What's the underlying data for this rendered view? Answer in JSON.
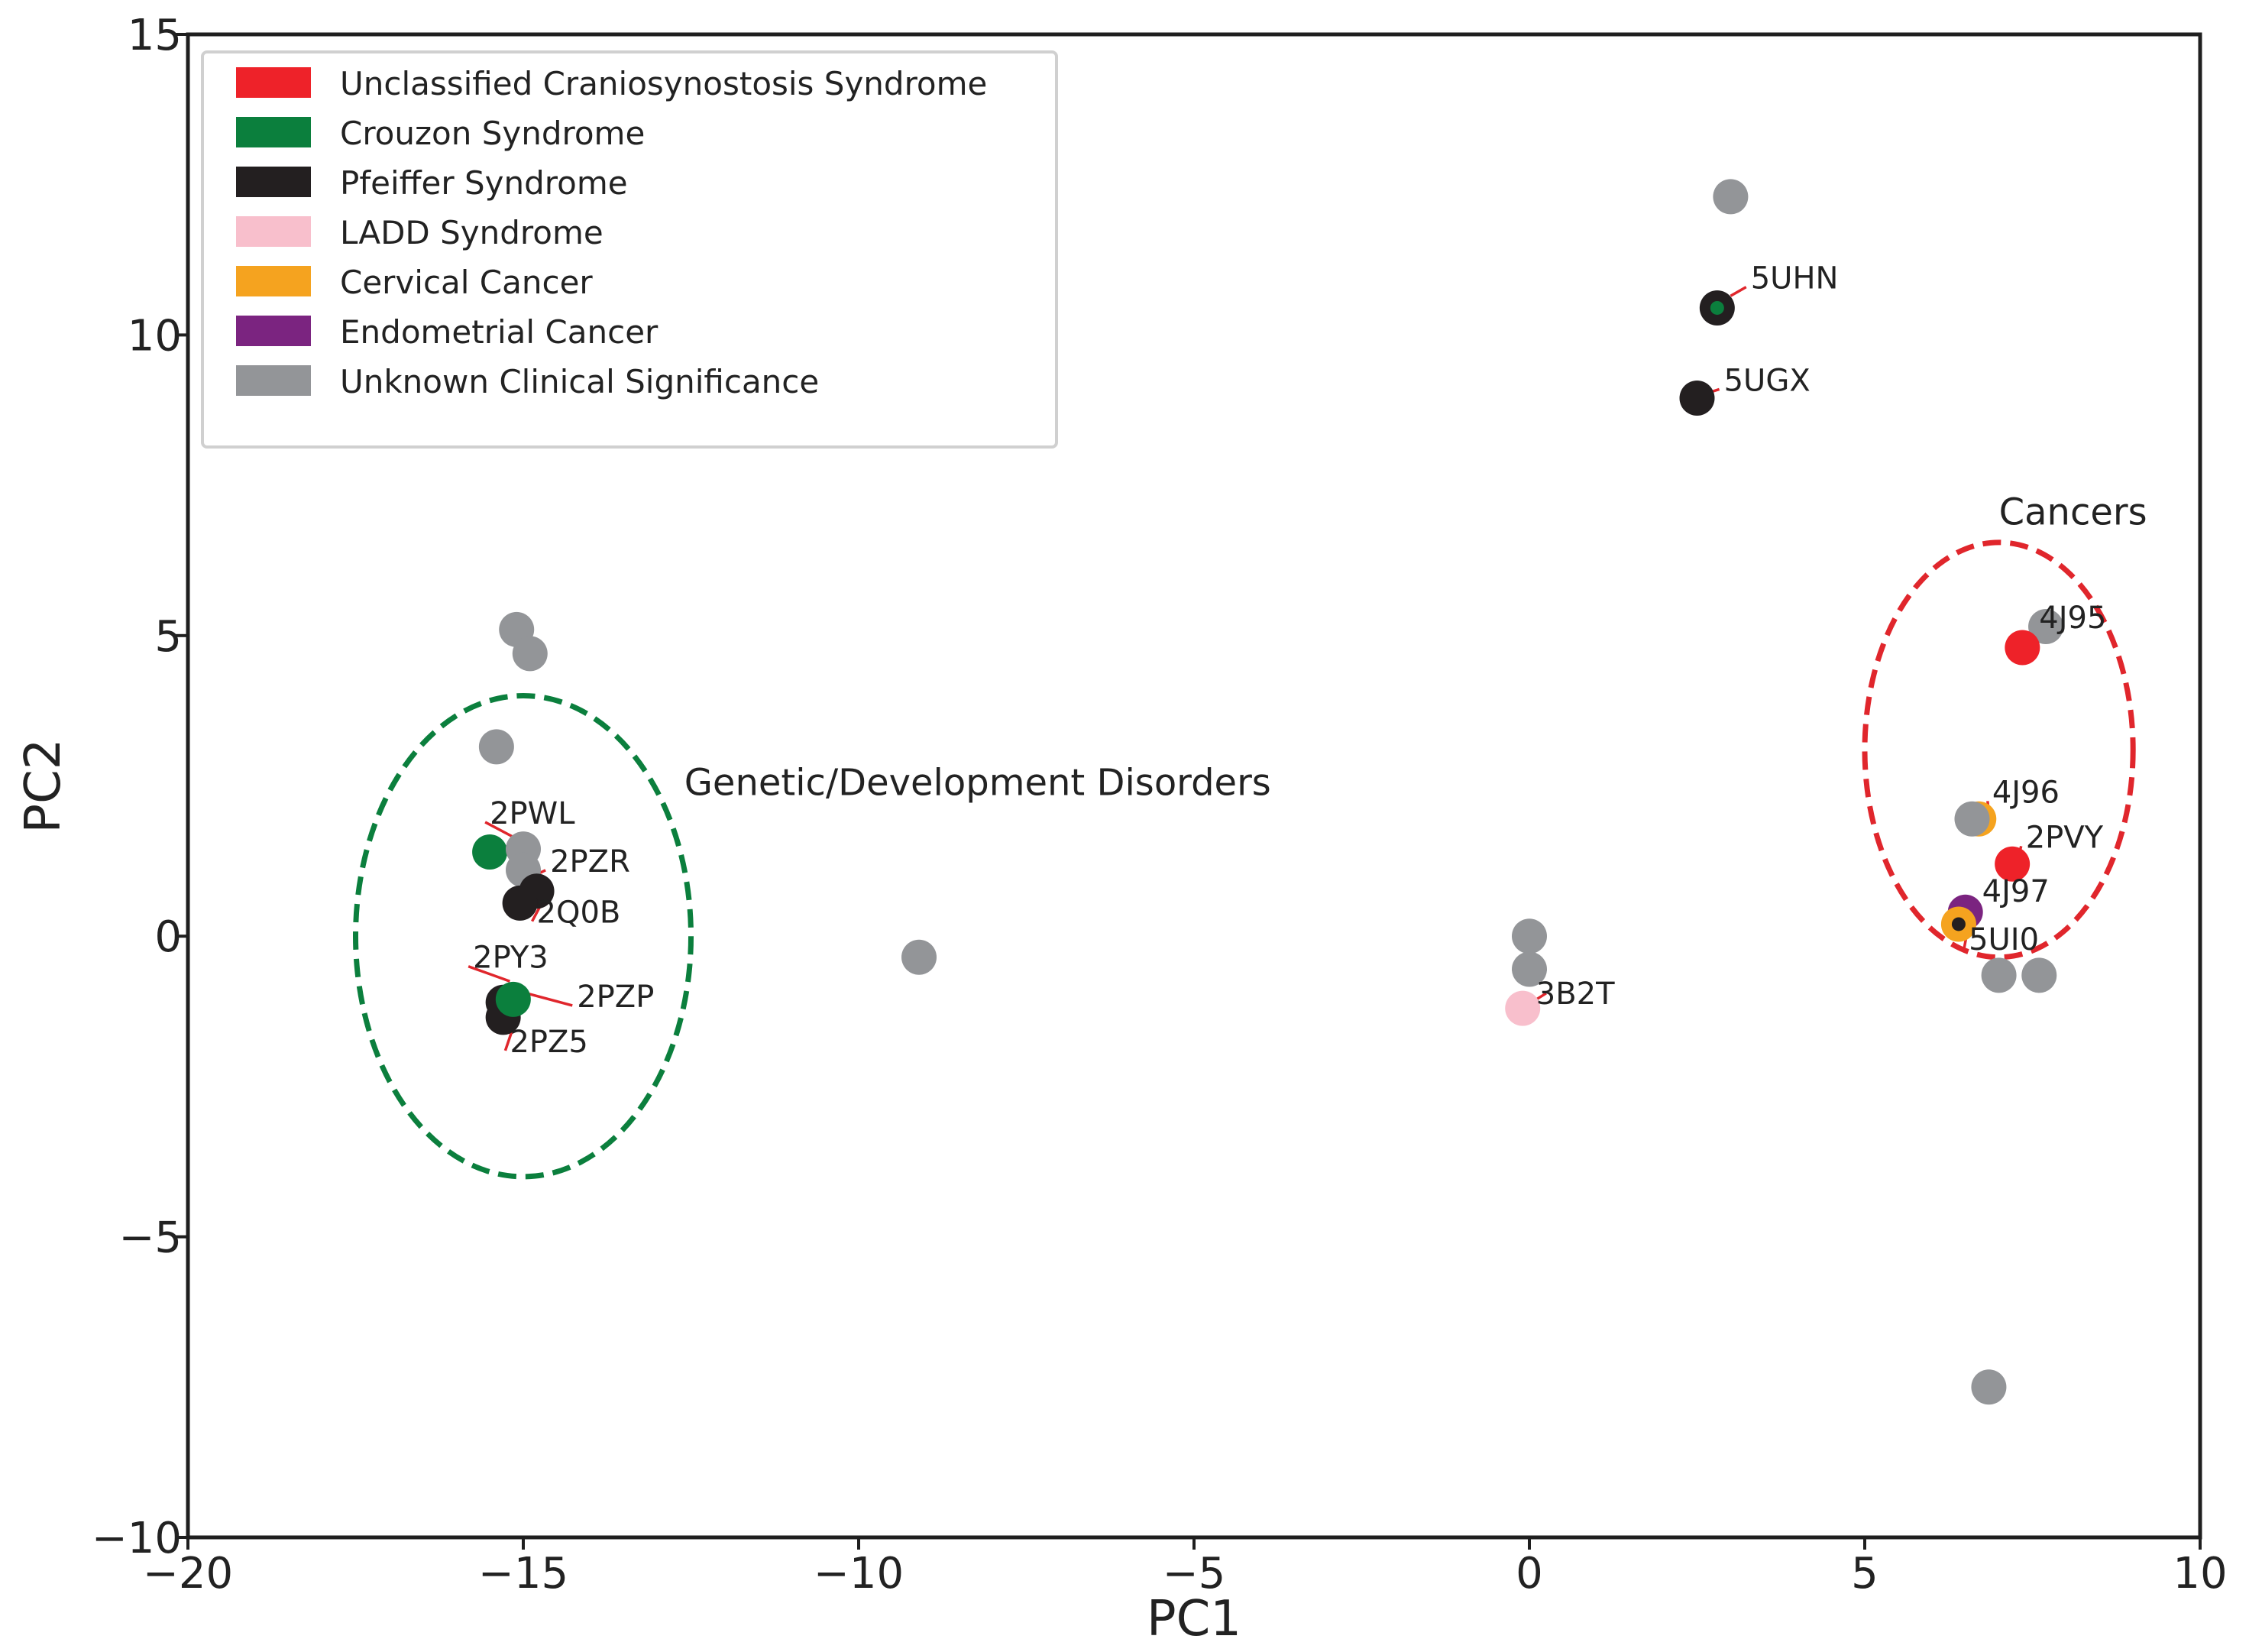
{
  "chart_data": {
    "type": "scatter",
    "title": "",
    "xlabel": "PC1",
    "ylabel": "PC2",
    "xlim": [
      -20,
      10
    ],
    "ylim": [
      -10,
      15
    ],
    "xticks": [
      -20,
      -15,
      -10,
      -5,
      0,
      5,
      10
    ],
    "yticks": [
      -10,
      -5,
      0,
      5,
      10,
      15
    ],
    "xtick_labels": [
      "−20",
      "−15",
      "−10",
      "−5",
      "0",
      "5",
      "10"
    ],
    "ytick_labels": [
      "−10",
      "−5",
      "0",
      "5",
      "10",
      "15"
    ],
    "grid": false,
    "legend_position": "top-left",
    "categories": [
      {
        "key": "ucs",
        "name": "Unclassified Craniosynostosis Syndrome",
        "color": "#ee2229"
      },
      {
        "key": "crouzon",
        "name": "Crouzon Syndrome",
        "color": "#0b7f3d"
      },
      {
        "key": "pfeiffer",
        "name": "Pfeiffer Syndrome",
        "color": "#231f20"
      },
      {
        "key": "ladd",
        "name": "LADD Syndrome",
        "color": "#f8bfcc"
      },
      {
        "key": "cervical",
        "name": "Cervical Cancer",
        "color": "#f5a31f"
      },
      {
        "key": "endometrial",
        "name": "Endometrial Cancer",
        "color": "#7b2480"
      },
      {
        "key": "unknown",
        "name": "Unknown Clinical Significance",
        "color": "#939598"
      }
    ],
    "points": [
      {
        "x": 3.0,
        "y": 12.3,
        "cat": "unknown"
      },
      {
        "x": 2.8,
        "y": 10.45,
        "cat": "pfeiffer"
      },
      {
        "x": 2.8,
        "y": 10.45,
        "cat": "crouzon",
        "inner": true
      },
      {
        "x": 2.5,
        "y": 8.95,
        "cat": "pfeiffer"
      },
      {
        "x": -15.1,
        "y": 5.1,
        "cat": "unknown"
      },
      {
        "x": -14.9,
        "y": 4.7,
        "cat": "unknown"
      },
      {
        "x": -15.4,
        "y": 3.15,
        "cat": "unknown"
      },
      {
        "x": -15.5,
        "y": 1.4,
        "cat": "crouzon"
      },
      {
        "x": -15.0,
        "y": 1.45,
        "cat": "unknown"
      },
      {
        "x": -15.0,
        "y": 1.1,
        "cat": "unknown"
      },
      {
        "x": -14.8,
        "y": 0.75,
        "cat": "pfeiffer"
      },
      {
        "x": -15.05,
        "y": 0.55,
        "cat": "pfeiffer"
      },
      {
        "x": -15.3,
        "y": -1.1,
        "cat": "pfeiffer"
      },
      {
        "x": -15.3,
        "y": -1.35,
        "cat": "pfeiffer"
      },
      {
        "x": -15.15,
        "y": -1.05,
        "cat": "crouzon"
      },
      {
        "x": -9.1,
        "y": -0.35,
        "cat": "unknown"
      },
      {
        "x": 0.0,
        "y": 0.0,
        "cat": "unknown"
      },
      {
        "x": 0.0,
        "y": -0.55,
        "cat": "unknown"
      },
      {
        "x": -0.1,
        "y": -1.2,
        "cat": "ladd"
      },
      {
        "x": 7.7,
        "y": 5.15,
        "cat": "unknown"
      },
      {
        "x": 7.35,
        "y": 4.8,
        "cat": "ucs"
      },
      {
        "x": 6.7,
        "y": 1.95,
        "cat": "cervical"
      },
      {
        "x": 6.6,
        "y": 1.95,
        "cat": "unknown"
      },
      {
        "x": 7.2,
        "y": 1.2,
        "cat": "ucs"
      },
      {
        "x": 6.5,
        "y": 0.4,
        "cat": "endometrial"
      },
      {
        "x": 6.4,
        "y": 0.2,
        "cat": "cervical"
      },
      {
        "x": 6.4,
        "y": 0.2,
        "cat": "pfeiffer",
        "inner": true
      },
      {
        "x": 7.0,
        "y": -0.65,
        "cat": "unknown"
      },
      {
        "x": 7.6,
        "y": -0.65,
        "cat": "unknown"
      },
      {
        "x": 6.85,
        "y": -7.5,
        "cat": "unknown"
      }
    ],
    "labels": [
      {
        "text": "5UHN",
        "x": 3.0,
        "y": 10.65,
        "tx": 3.3,
        "ty": 10.95
      },
      {
        "text": "5UGX",
        "x": 2.7,
        "y": 9.05,
        "tx": 2.9,
        "ty": 9.25
      },
      {
        "text": "4J95",
        "x": 7.75,
        "y": 5.05,
        "tx": 7.6,
        "ty": 5.3
      },
      {
        "text": "4J96",
        "x": 6.85,
        "y": 2.05,
        "tx": 6.9,
        "ty": 2.4
      },
      {
        "text": "2PVY",
        "x": 7.3,
        "y": 1.35,
        "tx": 7.4,
        "ty": 1.65
      },
      {
        "text": "4J97",
        "x": 6.65,
        "y": 0.55,
        "tx": 6.75,
        "ty": 0.75
      },
      {
        "text": "5UI0",
        "x": 6.55,
        "y": 0.2,
        "tx": 6.55,
        "ty": -0.05
      },
      {
        "text": "2PWL",
        "x": -15.15,
        "y": 1.65,
        "tx": -15.5,
        "ty": 2.05
      },
      {
        "text": "2PZR",
        "x": -14.85,
        "y": 1.0,
        "tx": -14.6,
        "ty": 1.25
      },
      {
        "text": "2Q0B",
        "x": -14.7,
        "y": 0.6,
        "tx": -14.8,
        "ty": 0.4
      },
      {
        "text": "2PY3",
        "x": -15.2,
        "y": -0.75,
        "tx": -15.75,
        "ty": -0.35
      },
      {
        "text": "2PZP",
        "x": -14.95,
        "y": -0.95,
        "tx": -14.2,
        "ty": -1.0
      },
      {
        "text": "2PZ5",
        "x": -15.1,
        "y": -1.35,
        "tx": -15.2,
        "ty": -1.75
      },
      {
        "text": "3B2T",
        "x": 0.25,
        "y": -0.95,
        "tx": 0.1,
        "ty": -0.95
      }
    ],
    "ellipses": [
      {
        "name": "genetic-disorders-ellipse",
        "cx": -15.0,
        "cy": 0.0,
        "rx": 2.5,
        "ry": 4.0,
        "color": "#0b7f3d"
      },
      {
        "name": "cancers-ellipse",
        "cx": 7.0,
        "cy": 3.1,
        "rx": 2.0,
        "ry": 3.45,
        "color": "#e0262c"
      }
    ],
    "annotations": [
      {
        "text": "Genetic/Development Disorders",
        "x": -12.6,
        "y": 2.55
      },
      {
        "text": "Cancers",
        "x": 7.0,
        "y": 7.05
      }
    ]
  }
}
